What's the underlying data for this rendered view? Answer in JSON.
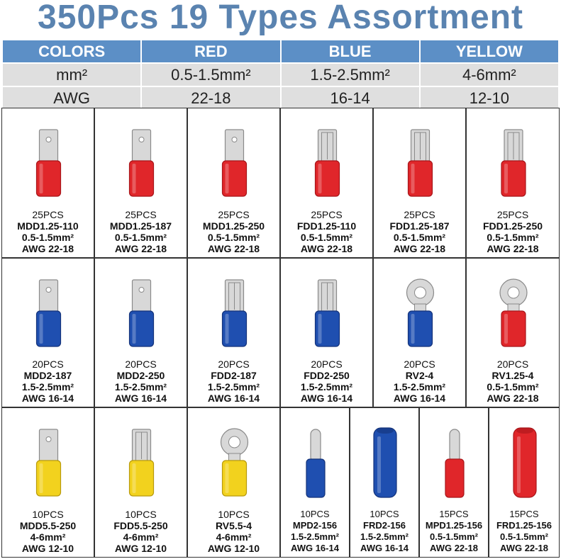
{
  "title": "350Pcs 19 Types Assortment",
  "colors": {
    "red": "#e0262a",
    "redDark": "#a8161a",
    "blue": "#1f4fb0",
    "blueDark": "#14337a",
    "yellow": "#f2d21e",
    "yellowDark": "#b89a0c",
    "metal": "#d8d8d8",
    "metalDark": "#8a8a8a",
    "header": "#5c8fc6",
    "titleColor": "#5a83b0"
  },
  "spec_table": {
    "headers": [
      "COLORS",
      "RED",
      "BLUE",
      "YELLOW"
    ],
    "rows": [
      [
        "mm²",
        "0.5-1.5mm²",
        "1.5-2.5mm²",
        "4-6mm²"
      ],
      [
        "AWG",
        "22-18",
        "16-14",
        "12-10"
      ]
    ]
  },
  "terminals": [
    {
      "qty": "25PCS",
      "model": "MDD1.25-110",
      "size": "0.5-1.5mm²",
      "awg": "AWG 22-18",
      "shape": "male-spade",
      "color": "red"
    },
    {
      "qty": "25PCS",
      "model": "MDD1.25-187",
      "size": "0.5-1.5mm²",
      "awg": "AWG 22-18",
      "shape": "male-spade",
      "color": "red"
    },
    {
      "qty": "25PCS",
      "model": "MDD1.25-250",
      "size": "0.5-1.5mm²",
      "awg": "AWG 22-18",
      "shape": "male-spade",
      "color": "red"
    },
    {
      "qty": "25PCS",
      "model": "FDD1.25-110",
      "size": "0.5-1.5mm²",
      "awg": "AWG 22-18",
      "shape": "female-spade",
      "color": "red"
    },
    {
      "qty": "25PCS",
      "model": "FDD1.25-187",
      "size": "0.5-1.5mm²",
      "awg": "AWG 22-18",
      "shape": "female-spade",
      "color": "red"
    },
    {
      "qty": "25PCS",
      "model": "FDD1.25-250",
      "size": "0.5-1.5mm²",
      "awg": "AWG 22-18",
      "shape": "female-spade",
      "color": "red"
    },
    {
      "qty": "20PCS",
      "model": "MDD2-187",
      "size": "1.5-2.5mm²",
      "awg": "AWG 16-14",
      "shape": "male-spade",
      "color": "blue"
    },
    {
      "qty": "20PCS",
      "model": "MDD2-250",
      "size": "1.5-2.5mm²",
      "awg": "AWG 16-14",
      "shape": "male-spade",
      "color": "blue"
    },
    {
      "qty": "20PCS",
      "model": "FDD2-187",
      "size": "1.5-2.5mm²",
      "awg": "AWG 16-14",
      "shape": "female-spade",
      "color": "blue"
    },
    {
      "qty": "20PCS",
      "model": "FDD2-250",
      "size": "1.5-2.5mm²",
      "awg": "AWG 16-14",
      "shape": "female-spade",
      "color": "blue"
    },
    {
      "qty": "20PCS",
      "model": "RV2-4",
      "size": "1.5-2.5mm²",
      "awg": "AWG 16-14",
      "shape": "ring",
      "color": "blue"
    },
    {
      "qty": "20PCS",
      "model": "RV1.25-4",
      "size": "0.5-1.5mm²",
      "awg": "AWG 22-18",
      "shape": "ring",
      "color": "red"
    },
    {
      "qty": "10PCS",
      "model": "MDD5.5-250",
      "size": "4-6mm²",
      "awg": "AWG 12-10",
      "shape": "male-spade",
      "color": "yellow"
    },
    {
      "qty": "10PCS",
      "model": "FDD5.5-250",
      "size": "4-6mm²",
      "awg": "AWG 12-10",
      "shape": "female-spade",
      "color": "yellow"
    },
    {
      "qty": "10PCS",
      "model": "RV5.5-4",
      "size": "4-6mm²",
      "awg": "AWG 12-10",
      "shape": "ring",
      "color": "yellow"
    },
    {
      "qty": "10PCS",
      "model": "MPD2-156",
      "size": "1.5-2.5mm²",
      "awg": "AWG 16-14",
      "shape": "male-bullet",
      "color": "blue"
    },
    {
      "qty": "10PCS",
      "model": "FRD2-156",
      "size": "1.5-2.5mm²",
      "awg": "AWG 16-14",
      "shape": "female-bullet",
      "color": "blue"
    },
    {
      "qty": "15PCS",
      "model": "MPD1.25-156",
      "size": "0.5-1.5mm²",
      "awg": "AWG 22-18",
      "shape": "male-bullet",
      "color": "red"
    },
    {
      "qty": "15PCS",
      "model": "FRD1.25-156",
      "size": "0.5-1.5mm²",
      "awg": "AWG 22-18",
      "shape": "female-bullet",
      "color": "red"
    }
  ]
}
